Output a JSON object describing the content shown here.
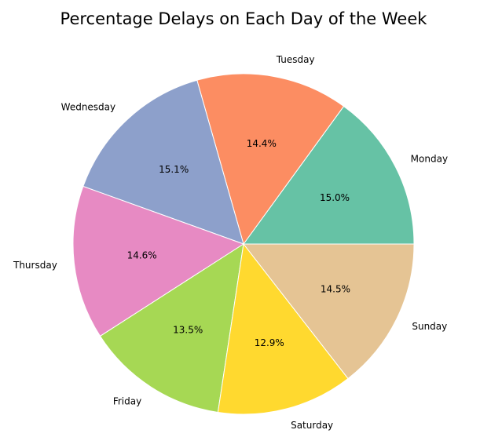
{
  "chart_data": {
    "type": "pie",
    "title": "Percentage Delays on Each Day of the Week",
    "categories": [
      "Monday",
      "Tuesday",
      "Wednesday",
      "Thursday",
      "Friday",
      "Saturday",
      "Sunday"
    ],
    "values": [
      15.0,
      14.4,
      15.1,
      14.6,
      13.5,
      12.9,
      14.5
    ],
    "value_labels": [
      "15.0%",
      "14.4%",
      "15.1%",
      "14.6%",
      "13.5%",
      "12.9%",
      "14.5%"
    ],
    "colors": [
      "#66c2a5",
      "#fc8d62",
      "#8da0cb",
      "#e78ac3",
      "#a6d854",
      "#ffd92f",
      "#e5c494"
    ],
    "start_angle_deg": 0,
    "direction": "counterclockwise",
    "legend": "none"
  }
}
